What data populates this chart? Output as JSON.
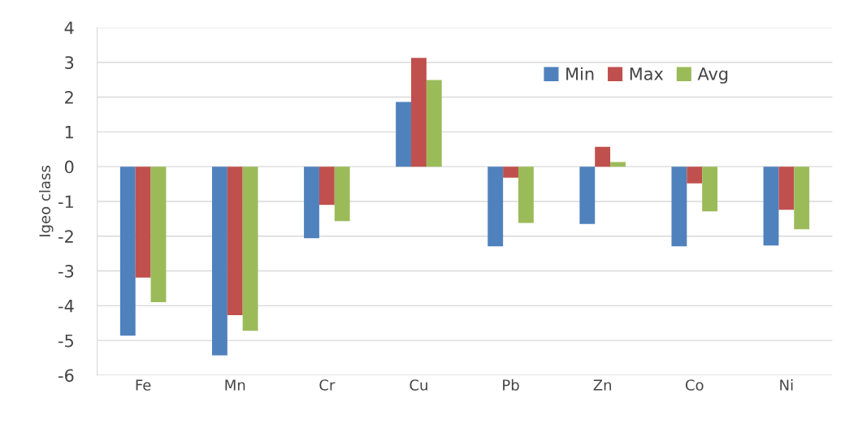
{
  "chart_data": {
    "type": "bar",
    "ylabel": "Igeo class",
    "categories": [
      "Fe",
      "Mn",
      "Cr",
      "Cu",
      "Pb",
      "Zn",
      "Co",
      "Ni"
    ],
    "series": [
      {
        "name": "Min",
        "color": "#4f81bd",
        "values": [
          -4.86,
          -5.43,
          -2.06,
          1.86,
          -2.29,
          -1.65,
          -2.29,
          -2.27
        ]
      },
      {
        "name": "Max",
        "color": "#c0504d",
        "values": [
          -3.19,
          -4.27,
          -1.1,
          3.13,
          -0.32,
          0.57,
          -0.48,
          -1.24
        ]
      },
      {
        "name": "Avg",
        "color": "#9bbb59",
        "values": [
          -3.9,
          -4.72,
          -1.57,
          2.49,
          -1.62,
          0.13,
          -1.29,
          -1.8
        ]
      }
    ],
    "ylim": [
      -6,
      4
    ],
    "yticks": [
      -6,
      -5,
      -4,
      -3,
      -2,
      -1,
      0,
      1,
      2,
      3,
      4
    ],
    "grid": "y",
    "legend": "top right"
  }
}
